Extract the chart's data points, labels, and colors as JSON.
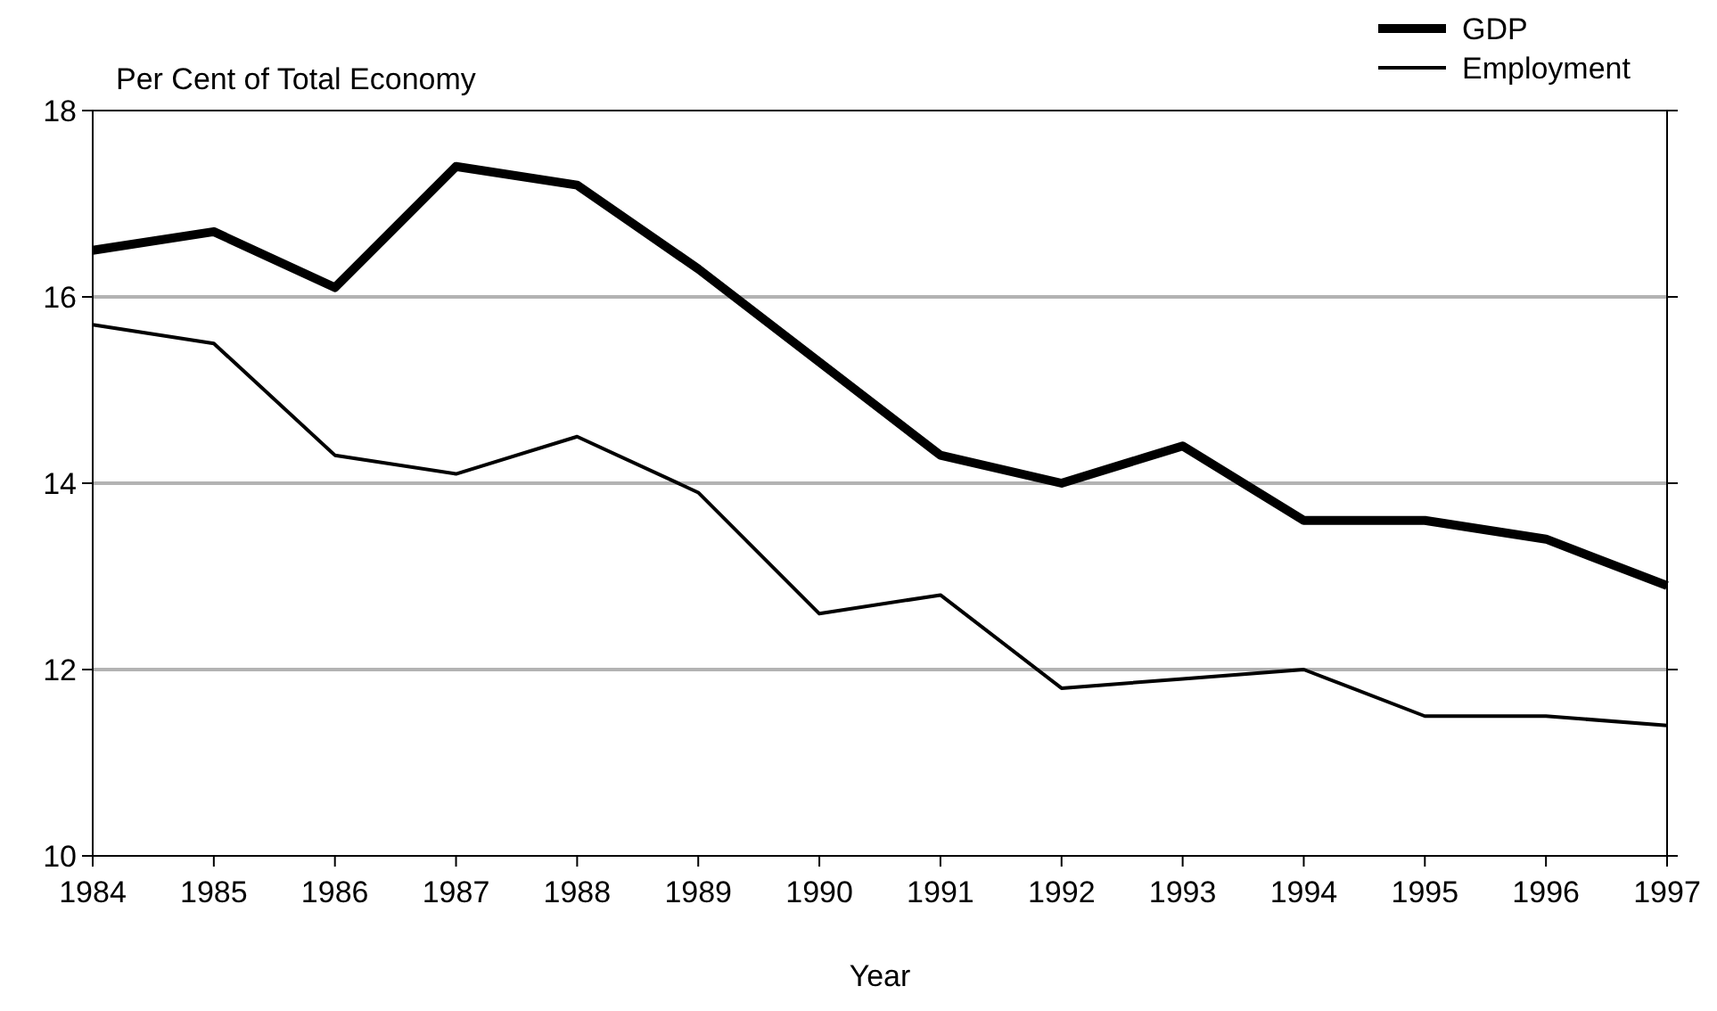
{
  "chart_data": {
    "type": "line",
    "ylabel": "Per Cent of Total Economy",
    "xlabel": "Year",
    "categories": [
      "1984",
      "1985",
      "1986",
      "1987",
      "1988",
      "1989",
      "1990",
      "1991",
      "1992",
      "1993",
      "1994",
      "1995",
      "1996",
      "1997"
    ],
    "series": [
      {
        "name": "GDP",
        "color": "#000000",
        "values": [
          16.5,
          16.7,
          16.1,
          17.4,
          17.2,
          16.3,
          15.3,
          14.3,
          14.0,
          14.4,
          13.6,
          13.6,
          13.4,
          12.9
        ]
      },
      {
        "name": "Employment",
        "color": "#000000",
        "values": [
          15.7,
          15.5,
          14.3,
          14.1,
          14.5,
          13.9,
          12.6,
          12.8,
          11.8,
          11.9,
          12.0,
          11.5,
          11.5,
          11.4
        ]
      }
    ],
    "ylim": [
      10,
      18
    ],
    "yticks": [
      10,
      12,
      14,
      16,
      18
    ],
    "grid": "y",
    "legend": "top right",
    "marker": "none",
    "line_style": "solid"
  }
}
